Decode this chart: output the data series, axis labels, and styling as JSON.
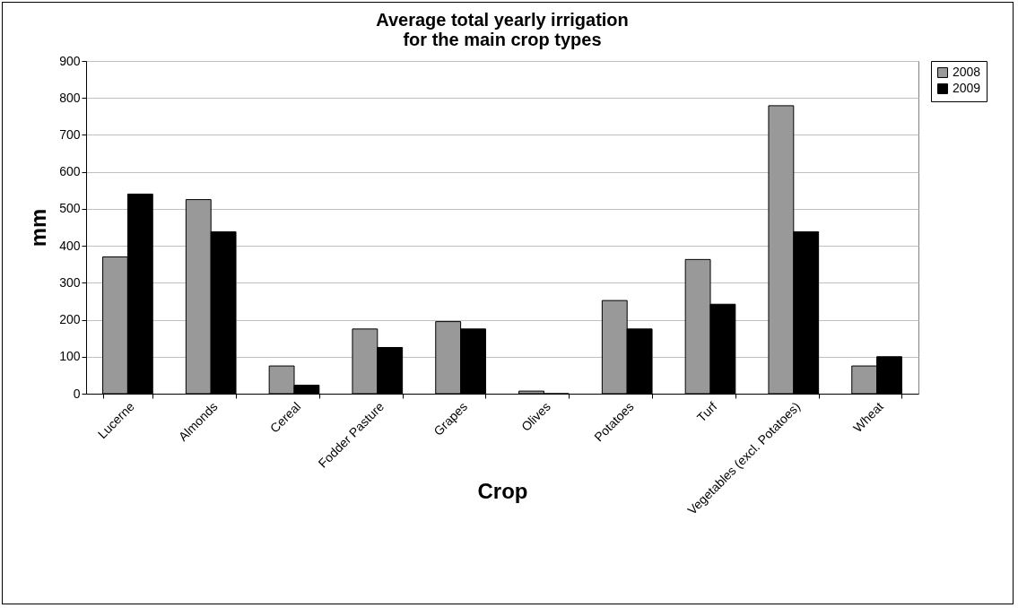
{
  "chart_data": {
    "type": "bar",
    "title": "Average total yearly irrigation\nfor the main crop types",
    "xlabel": "Crop",
    "ylabel": "mm",
    "categories": [
      "Lucerne",
      "Almonds",
      "Cereal",
      "Fodder Pasture",
      "Grapes",
      "Olives",
      "Potatoes",
      "Turf",
      "Vegetables (excl. Potatoes)",
      "Wheat"
    ],
    "series": [
      {
        "name": "2008",
        "color": "#999999",
        "values": [
          370,
          525,
          75,
          175,
          195,
          7,
          252,
          363,
          779,
          75
        ]
      },
      {
        "name": "2009",
        "color": "#000000",
        "values": [
          540,
          438,
          23,
          125,
          175,
          0,
          175,
          242,
          438,
          100
        ]
      }
    ],
    "ylim": [
      0,
      900
    ],
    "yticks": [
      0,
      100,
      200,
      300,
      400,
      500,
      600,
      700,
      800,
      900
    ],
    "grid": "y",
    "legend": "right"
  }
}
